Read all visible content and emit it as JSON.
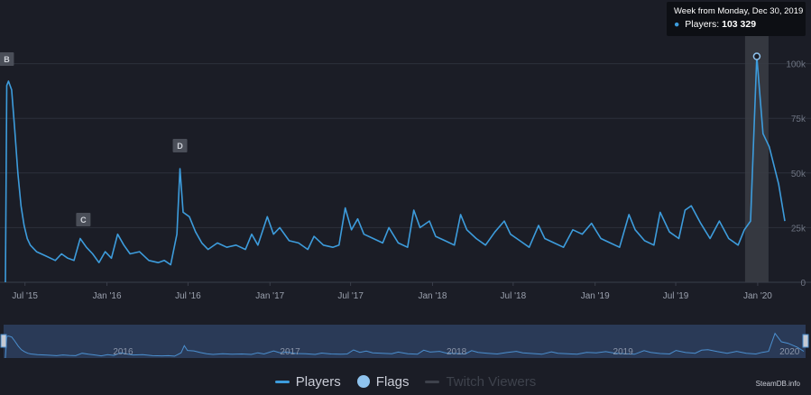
{
  "chart_data": {
    "type": "line",
    "series": [
      {
        "name": "Players",
        "color": "#3d9cdc",
        "points": [
          [
            "2015-05-18",
            0
          ],
          [
            "2015-05-21",
            90000
          ],
          [
            "2015-05-25",
            92000
          ],
          [
            "2015-06-01",
            88000
          ],
          [
            "2015-06-08",
            70000
          ],
          [
            "2015-06-15",
            50000
          ],
          [
            "2015-06-22",
            35000
          ],
          [
            "2015-06-29",
            26000
          ],
          [
            "2015-07-06",
            20000
          ],
          [
            "2015-07-13",
            17000
          ],
          [
            "2015-07-27",
            14000
          ],
          [
            "2015-08-17",
            12000
          ],
          [
            "2015-09-07",
            10000
          ],
          [
            "2015-09-21",
            13000
          ],
          [
            "2015-10-05",
            11000
          ],
          [
            "2015-10-19",
            10000
          ],
          [
            "2015-11-02",
            20000
          ],
          [
            "2015-11-16",
            16000
          ],
          [
            "2015-11-30",
            13000
          ],
          [
            "2015-12-14",
            9000
          ],
          [
            "2015-12-28",
            14000
          ],
          [
            "2016-01-11",
            11000
          ],
          [
            "2016-01-25",
            22000
          ],
          [
            "2016-02-08",
            17000
          ],
          [
            "2016-02-22",
            13000
          ],
          [
            "2016-03-14",
            14000
          ],
          [
            "2016-04-04",
            10000
          ],
          [
            "2016-04-25",
            9000
          ],
          [
            "2016-05-09",
            10000
          ],
          [
            "2016-05-23",
            8000
          ],
          [
            "2016-06-06",
            22000
          ],
          [
            "2016-06-13",
            52000
          ],
          [
            "2016-06-20",
            32000
          ],
          [
            "2016-07-04",
            30000
          ],
          [
            "2016-07-18",
            23000
          ],
          [
            "2016-08-01",
            18000
          ],
          [
            "2016-08-15",
            15000
          ],
          [
            "2016-09-05",
            18000
          ],
          [
            "2016-09-26",
            16000
          ],
          [
            "2016-10-17",
            17000
          ],
          [
            "2016-11-07",
            15000
          ],
          [
            "2016-11-21",
            22000
          ],
          [
            "2016-12-05",
            17000
          ],
          [
            "2016-12-26",
            30000
          ],
          [
            "2017-01-09",
            22000
          ],
          [
            "2017-01-23",
            25000
          ],
          [
            "2017-02-13",
            19000
          ],
          [
            "2017-03-06",
            18000
          ],
          [
            "2017-03-27",
            15000
          ],
          [
            "2017-04-10",
            21000
          ],
          [
            "2017-05-01",
            17000
          ],
          [
            "2017-05-22",
            16000
          ],
          [
            "2017-06-05",
            17000
          ],
          [
            "2017-06-19",
            34000
          ],
          [
            "2017-07-03",
            24000
          ],
          [
            "2017-07-17",
            29000
          ],
          [
            "2017-07-31",
            22000
          ],
          [
            "2017-08-21",
            20000
          ],
          [
            "2017-09-11",
            18000
          ],
          [
            "2017-09-25",
            25000
          ],
          [
            "2017-10-16",
            18000
          ],
          [
            "2017-11-06",
            16000
          ],
          [
            "2017-11-20",
            33000
          ],
          [
            "2017-12-04",
            25000
          ],
          [
            "2017-12-25",
            28000
          ],
          [
            "2018-01-08",
            21000
          ],
          [
            "2018-01-29",
            19000
          ],
          [
            "2018-02-19",
            17000
          ],
          [
            "2018-03-05",
            31000
          ],
          [
            "2018-03-19",
            24000
          ],
          [
            "2018-04-09",
            20000
          ],
          [
            "2018-04-30",
            17000
          ],
          [
            "2018-05-21",
            23000
          ],
          [
            "2018-06-11",
            28000
          ],
          [
            "2018-06-25",
            22000
          ],
          [
            "2018-07-16",
            19000
          ],
          [
            "2018-08-06",
            16000
          ],
          [
            "2018-08-27",
            26000
          ],
          [
            "2018-09-10",
            20000
          ],
          [
            "2018-10-01",
            18000
          ],
          [
            "2018-10-22",
            16000
          ],
          [
            "2018-11-12",
            24000
          ],
          [
            "2018-12-03",
            22000
          ],
          [
            "2018-12-24",
            27000
          ],
          [
            "2019-01-14",
            20000
          ],
          [
            "2019-02-04",
            18000
          ],
          [
            "2019-02-25",
            16000
          ],
          [
            "2019-03-18",
            31000
          ],
          [
            "2019-04-01",
            24000
          ],
          [
            "2019-04-22",
            19000
          ],
          [
            "2019-05-13",
            17000
          ],
          [
            "2019-05-27",
            32000
          ],
          [
            "2019-06-17",
            23000
          ],
          [
            "2019-07-08",
            20000
          ],
          [
            "2019-07-22",
            33000
          ],
          [
            "2019-08-05",
            35000
          ],
          [
            "2019-08-26",
            27000
          ],
          [
            "2019-09-16",
            20000
          ],
          [
            "2019-10-07",
            28000
          ],
          [
            "2019-10-28",
            20000
          ],
          [
            "2019-11-18",
            17000
          ],
          [
            "2019-12-02",
            24000
          ],
          [
            "2019-12-16",
            28000
          ],
          [
            "2019-12-30",
            103329
          ],
          [
            "2020-01-13",
            68000
          ],
          [
            "2020-01-27",
            62000
          ],
          [
            "2020-02-17",
            45000
          ],
          [
            "2020-03-02",
            28000
          ]
        ]
      }
    ],
    "x_ticks": [
      {
        "date": "2015-07-01",
        "label": "Jul '15"
      },
      {
        "date": "2016-01-01",
        "label": "Jan '16"
      },
      {
        "date": "2016-07-01",
        "label": "Jul '16"
      },
      {
        "date": "2017-01-01",
        "label": "Jan '17"
      },
      {
        "date": "2017-07-01",
        "label": "Jul '17"
      },
      {
        "date": "2018-01-01",
        "label": "Jan '18"
      },
      {
        "date": "2018-07-01",
        "label": "Jul '18"
      },
      {
        "date": "2019-01-01",
        "label": "Jan '19"
      },
      {
        "date": "2019-07-01",
        "label": "Jul '19"
      },
      {
        "date": "2020-01-01",
        "label": "Jan '20"
      }
    ],
    "y_ticks": [
      {
        "value": 0,
        "label": "0"
      },
      {
        "value": 25000,
        "label": "25k"
      },
      {
        "value": 50000,
        "label": "50k"
      },
      {
        "value": 75000,
        "label": "75k"
      },
      {
        "value": 100000,
        "label": "100k"
      }
    ],
    "xlim": [
      "2015-05-14",
      "2020-03-06"
    ],
    "ylim": [
      0,
      125000
    ],
    "grid": true,
    "flags": [
      {
        "label": "B",
        "date": "2015-05-21"
      },
      {
        "label": "C",
        "date": "2015-11-09"
      },
      {
        "label": "D",
        "date": "2016-06-13"
      }
    ],
    "highlight": {
      "date": "2019-12-30",
      "value": 103329
    },
    "navigator_labels": [
      "2016",
      "2017",
      "2018",
      "2019",
      "2020"
    ]
  },
  "tooltip": {
    "title": "Week from Monday, Dec 30, 2019",
    "series_label": "Players:",
    "value": "103 329"
  },
  "legend": {
    "players": "Players",
    "flags": "Flags",
    "twitch": "Twitch Viewers"
  },
  "credit": "SteamDB.info",
  "colors": {
    "background": "#1b1d26",
    "line": "#3d9cdc",
    "flag_marker": "#8fc3ee",
    "highlight_band": "#3a3d45",
    "navigator": "#2a3a57"
  }
}
